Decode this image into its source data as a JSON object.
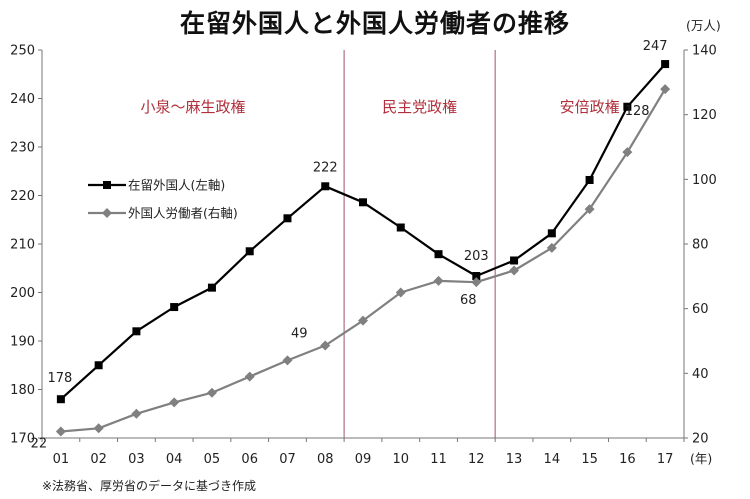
{
  "chart_data": {
    "type": "line",
    "title": "在留外国人と外国人労働者の推移",
    "categories": [
      "01",
      "02",
      "03",
      "04",
      "05",
      "06",
      "07",
      "08",
      "09",
      "10",
      "11",
      "12",
      "13",
      "14",
      "15",
      "16",
      "17"
    ],
    "x_unit": "(年)",
    "y_left": {
      "min": 170,
      "max": 250,
      "step": 10,
      "ticks": [
        "170",
        "180",
        "190",
        "200",
        "210",
        "220",
        "230",
        "240",
        "250"
      ]
    },
    "y_right": {
      "min": 20,
      "max": 140,
      "step": 20,
      "ticks": [
        "20",
        "40",
        "60",
        "80",
        "100",
        "120",
        "140"
      ],
      "unit": "(万人)"
    },
    "series": [
      {
        "name": "在留外国人(左軸)",
        "axis": "left",
        "color": "#000000",
        "marker": "square",
        "values": [
          178,
          185,
          192,
          197,
          201,
          208.5,
          215.3,
          221.9,
          218.6,
          213.4,
          207.9,
          203.4,
          206.6,
          212.2,
          223.2,
          238.3,
          247.1
        ]
      },
      {
        "name": "外国人労働者(右軸)",
        "axis": "right",
        "color": "#808080",
        "marker": "diamond",
        "values": [
          22,
          23,
          27.5,
          31,
          34,
          39,
          44,
          48.6,
          56.3,
          65,
          68.6,
          68.2,
          71.8,
          78.8,
          90.8,
          108.4,
          127.9
        ]
      }
    ],
    "data_labels": [
      {
        "series": 0,
        "index": 0,
        "text": "178"
      },
      {
        "series": 0,
        "index": 7,
        "text": "222"
      },
      {
        "series": 0,
        "index": 11,
        "text": "203"
      },
      {
        "series": 0,
        "index": 16,
        "text": "247"
      },
      {
        "series": 1,
        "index": 0,
        "text": "22"
      },
      {
        "series": 1,
        "index": 7,
        "text": "49"
      },
      {
        "series": 1,
        "index": 11,
        "text": "68"
      },
      {
        "series": 1,
        "index": 16,
        "text": "128"
      }
    ],
    "periods": [
      {
        "label": "小泉〜麻生政権",
        "start_index": 0,
        "end_index": 7
      },
      {
        "label": "民主党政権",
        "start_index": 8,
        "end_index": 11
      },
      {
        "label": "安倍政権",
        "start_index": 12,
        "end_index": 16
      }
    ],
    "divider_color": "#b07080",
    "legend_position": "left",
    "grid": false
  },
  "source_note": "※法務省、厚労省のデータに基づき作成"
}
